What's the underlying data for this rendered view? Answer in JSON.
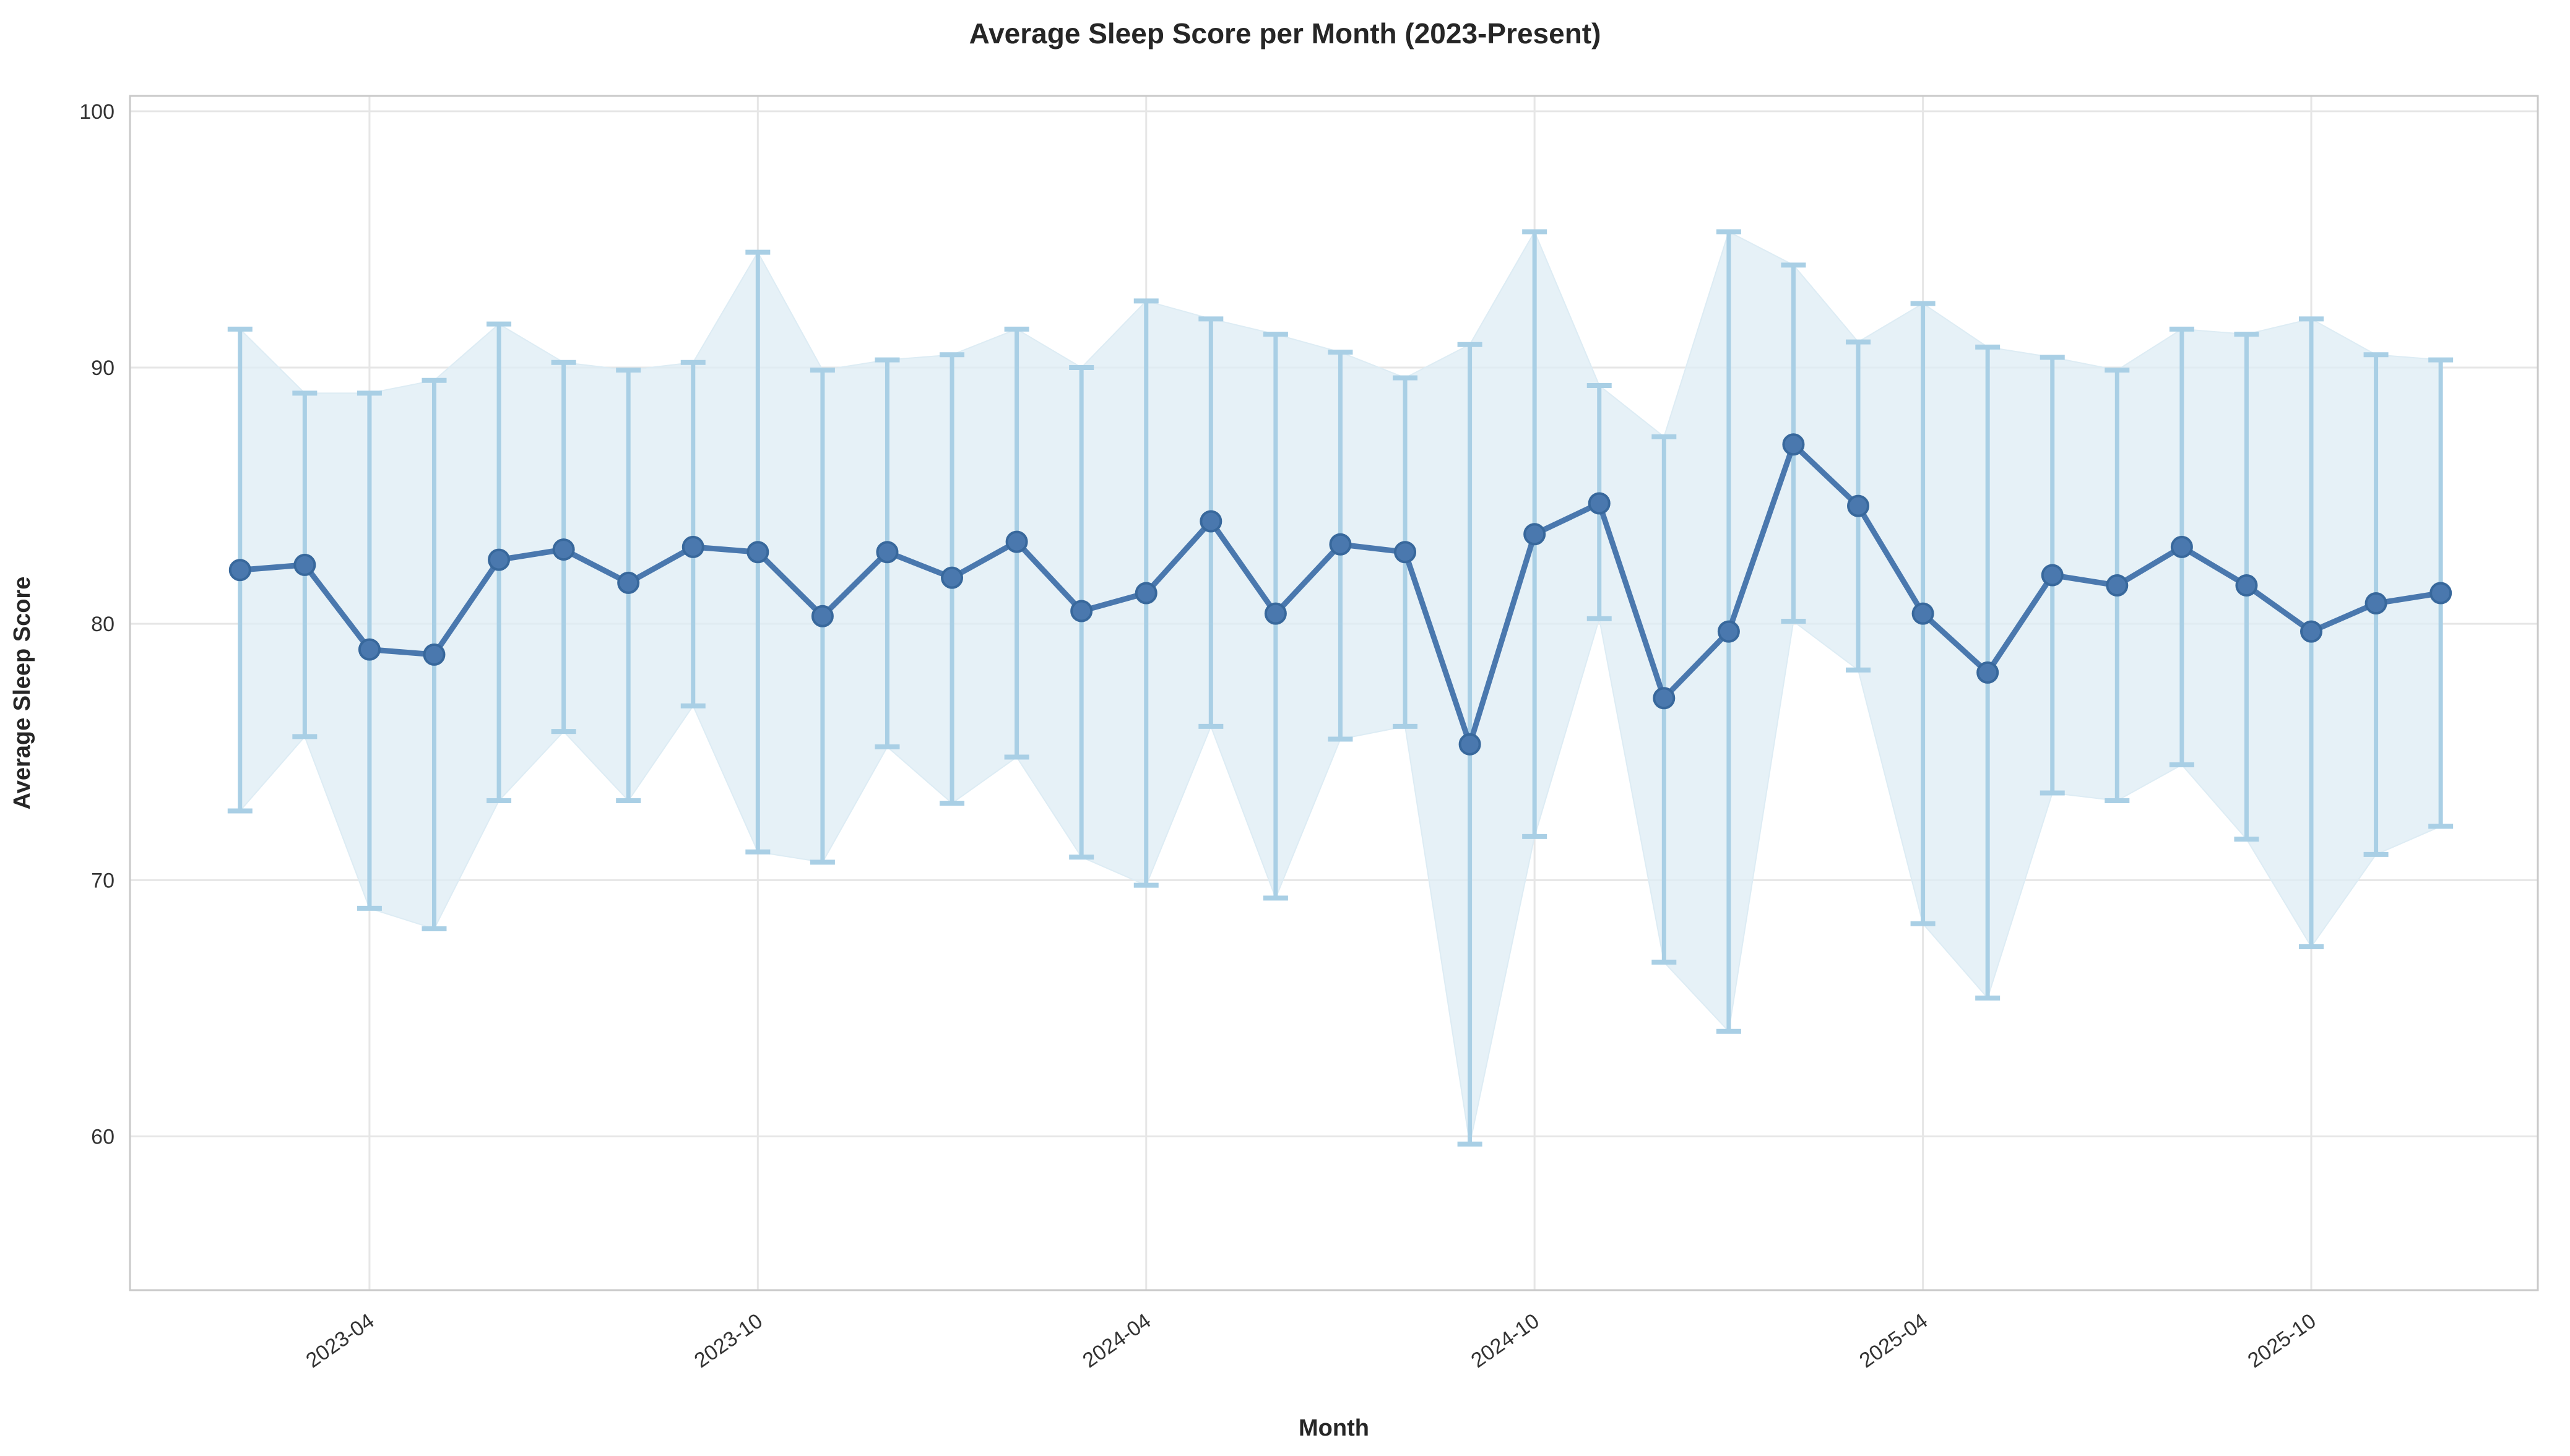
{
  "page": {
    "background": "#ffffff"
  },
  "chart_data": {
    "type": "line",
    "title": "Average Sleep Score per Month (2023-Present)",
    "xlabel": "Month",
    "ylabel": "Average Sleep Score",
    "legend_position": "none",
    "grid": true,
    "x": [
      "2023-02",
      "2023-03",
      "2023-04",
      "2023-05",
      "2023-06",
      "2023-07",
      "2023-08",
      "2023-09",
      "2023-10",
      "2023-11",
      "2023-12",
      "2024-01",
      "2024-02",
      "2024-03",
      "2024-04",
      "2024-05",
      "2024-06",
      "2024-07",
      "2024-08",
      "2024-09",
      "2024-10",
      "2024-11",
      "2024-12",
      "2025-01",
      "2025-02",
      "2025-03",
      "2025-04",
      "2025-05",
      "2025-06",
      "2025-07",
      "2025-08",
      "2025-09",
      "2025-10",
      "2025-11",
      "2025-12"
    ],
    "series": [
      {
        "name": "Average Sleep Score",
        "values": [
          82.1,
          82.3,
          79.0,
          78.8,
          82.5,
          82.9,
          81.6,
          83.0,
          82.8,
          80.3,
          82.8,
          81.8,
          83.2,
          80.5,
          81.2,
          84.0,
          80.4,
          83.1,
          82.8,
          75.3,
          83.5,
          84.7,
          77.1,
          79.7,
          87.0,
          84.6,
          80.4,
          78.1,
          81.9,
          81.5,
          83.0,
          81.5,
          79.7,
          80.8,
          81.2
        ],
        "err_lower": [
          72.7,
          75.6,
          68.9,
          68.1,
          73.1,
          75.8,
          73.1,
          76.8,
          71.1,
          70.7,
          75.2,
          73.0,
          74.8,
          70.9,
          69.8,
          76.0,
          69.3,
          75.5,
          76.0,
          59.7,
          71.7,
          80.2,
          66.8,
          64.1,
          80.1,
          78.2,
          68.3,
          65.4,
          73.4,
          73.1,
          74.5,
          71.6,
          67.4,
          71.0,
          72.1
        ],
        "err_upper": [
          91.5,
          89.0,
          89.0,
          89.5,
          91.7,
          90.2,
          89.9,
          90.2,
          94.5,
          89.9,
          90.3,
          90.5,
          91.5,
          90.0,
          92.6,
          91.9,
          91.3,
          90.6,
          89.6,
          90.9,
          95.3,
          89.3,
          87.3,
          95.3,
          94.0,
          91.0,
          92.5,
          90.8,
          90.4,
          89.9,
          91.5,
          91.3,
          91.9,
          90.5,
          90.3
        ]
      }
    ],
    "xtick_indices": [
      2,
      8,
      14,
      20,
      26,
      32
    ],
    "xtick_labels": [
      "2023-04",
      "2023-10",
      "2024-04",
      "2024-10",
      "2025-04",
      "2025-10"
    ],
    "xtick_rotation": -35,
    "yticks": [
      60,
      70,
      80,
      90,
      100
    ],
    "ylim": [
      54.0,
      100.6
    ],
    "xlim_index": [
      -1.7,
      35.5
    ],
    "colors": {
      "line": "#4a78ae",
      "marker": "#4a78ae",
      "marker_edge": "#38689c",
      "error": "#a9cfe5",
      "band": "#ddecf4",
      "grid": "#e6e6e6",
      "spine": "#c9c9c9",
      "title": "#262626",
      "tick": "#333333"
    }
  }
}
